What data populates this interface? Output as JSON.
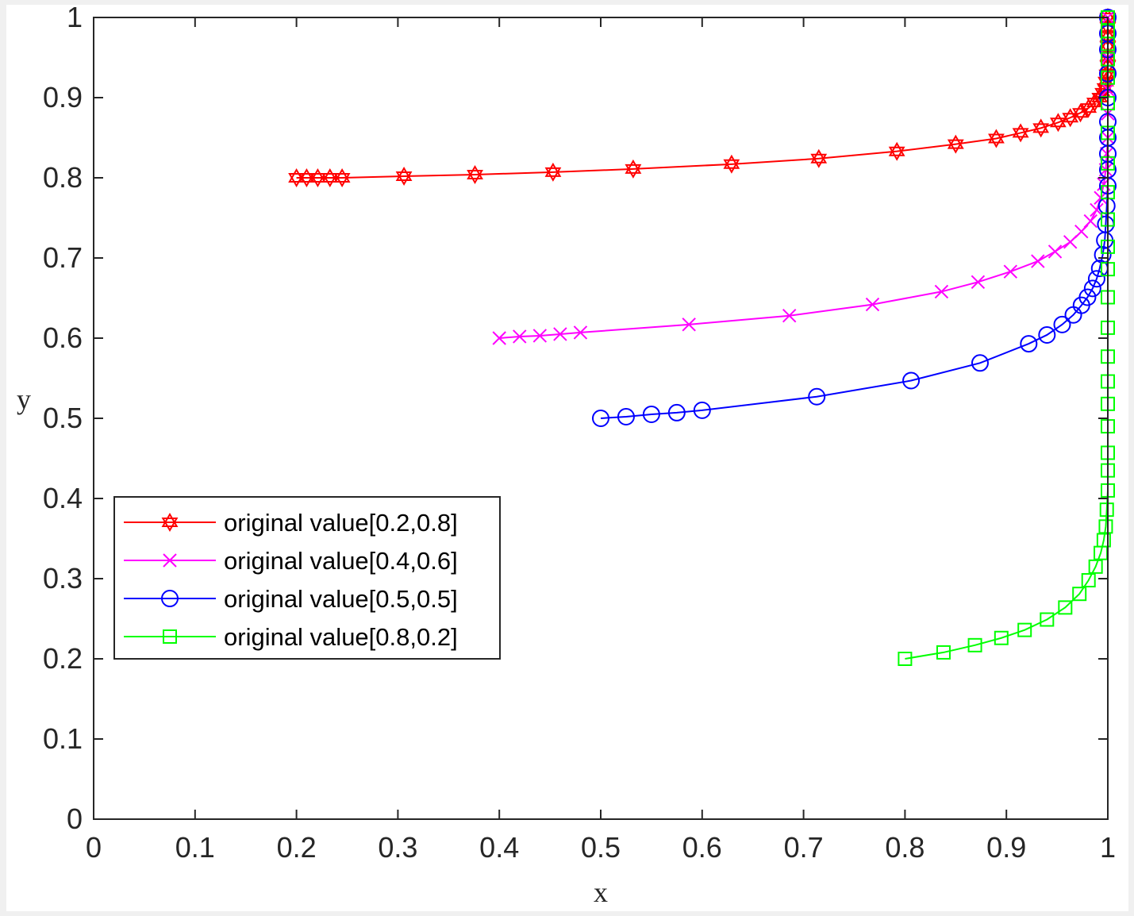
{
  "chart_data": {
    "type": "line",
    "title": "",
    "xlabel": "x",
    "ylabel": "y",
    "xlim": [
      0,
      1
    ],
    "ylim": [
      0,
      1
    ],
    "xticks": [
      "0",
      "0.1",
      "0.2",
      "0.3",
      "0.4",
      "0.5",
      "0.6",
      "0.7",
      "0.8",
      "0.9",
      "1"
    ],
    "yticks": [
      "0",
      "0.1",
      "0.2",
      "0.3",
      "0.4",
      "0.5",
      "0.6",
      "0.7",
      "0.8",
      "0.9",
      "1"
    ],
    "grid": false,
    "legend_position": "bottom-left",
    "series": [
      {
        "name": "original value[0.2,0.8]",
        "color": "#ff0000",
        "marker": "hexagram",
        "x": [
          0.2,
          0.21,
          0.221,
          0.233,
          0.245,
          0.306,
          0.376,
          0.453,
          0.532,
          0.629,
          0.715,
          0.792,
          0.85,
          0.89,
          0.914,
          0.934,
          0.951,
          0.963,
          0.973,
          0.981,
          0.987,
          0.992,
          0.995,
          0.997,
          0.998,
          0.999,
          1.0,
          1.0,
          1.0,
          1.0,
          1.0,
          1.0
        ],
        "y": [
          0.8,
          0.8,
          0.8,
          0.8,
          0.8,
          0.802,
          0.804,
          0.807,
          0.811,
          0.817,
          0.824,
          0.833,
          0.842,
          0.849,
          0.856,
          0.862,
          0.869,
          0.875,
          0.881,
          0.887,
          0.894,
          0.9,
          0.906,
          0.912,
          0.92,
          0.929,
          0.94,
          0.952,
          0.964,
          0.976,
          0.988,
          1.0
        ]
      },
      {
        "name": "original value[0.4,0.6]",
        "color": "#ff00ff",
        "marker": "x",
        "x": [
          0.4,
          0.42,
          0.44,
          0.46,
          0.48,
          0.587,
          0.686,
          0.768,
          0.836,
          0.872,
          0.904,
          0.931,
          0.948,
          0.963,
          0.974,
          0.983,
          0.989,
          0.993,
          0.996,
          0.998,
          0.999,
          1.0,
          1.0,
          1.0,
          1.0,
          1.0
        ],
        "y": [
          0.6,
          0.602,
          0.603,
          0.605,
          0.607,
          0.617,
          0.628,
          0.642,
          0.658,
          0.67,
          0.683,
          0.696,
          0.708,
          0.72,
          0.733,
          0.746,
          0.76,
          0.775,
          0.792,
          0.81,
          0.83,
          0.85,
          0.88,
          0.91,
          0.95,
          1.0
        ]
      },
      {
        "name": "original value[0.5,0.5]",
        "color": "#0000ff",
        "marker": "circle",
        "x": [
          0.5,
          0.525,
          0.55,
          0.575,
          0.6,
          0.713,
          0.806,
          0.874,
          0.922,
          0.94,
          0.955,
          0.966,
          0.974,
          0.98,
          0.985,
          0.989,
          0.992,
          0.995,
          0.997,
          0.998,
          0.999,
          1.0,
          1.0,
          1.0,
          1.0,
          1.0,
          1.0,
          1.0,
          1.0,
          1.0,
          1.0
        ],
        "y": [
          0.5,
          0.502,
          0.505,
          0.507,
          0.51,
          0.527,
          0.547,
          0.569,
          0.593,
          0.604,
          0.617,
          0.629,
          0.641,
          0.651,
          0.662,
          0.674,
          0.687,
          0.704,
          0.722,
          0.742,
          0.765,
          0.79,
          0.81,
          0.83,
          0.85,
          0.87,
          0.9,
          0.93,
          0.96,
          0.98,
          1.0
        ]
      },
      {
        "name": "original value[0.8,0.2]",
        "color": "#00ff00",
        "marker": "square",
        "x": [
          0.8,
          0.838,
          0.869,
          0.895,
          0.918,
          0.94,
          0.958,
          0.972,
          0.981,
          0.988,
          0.993,
          0.996,
          0.998,
          0.999,
          1.0,
          1.0,
          1.0,
          1.0,
          1.0,
          1.0,
          1.0,
          1.0,
          1.0,
          1.0,
          1.0,
          1.0,
          1.0,
          1.0,
          1.0,
          1.0,
          1.0,
          1.0,
          1.0,
          1.0,
          1.0
        ],
        "y": [
          0.2,
          0.208,
          0.217,
          0.226,
          0.236,
          0.249,
          0.264,
          0.281,
          0.298,
          0.315,
          0.332,
          0.348,
          0.365,
          0.386,
          0.41,
          0.435,
          0.457,
          0.49,
          0.518,
          0.546,
          0.577,
          0.613,
          0.651,
          0.686,
          0.714,
          0.748,
          0.782,
          0.818,
          0.856,
          0.893,
          0.925,
          0.948,
          0.967,
          0.983,
          1.0
        ]
      }
    ]
  }
}
